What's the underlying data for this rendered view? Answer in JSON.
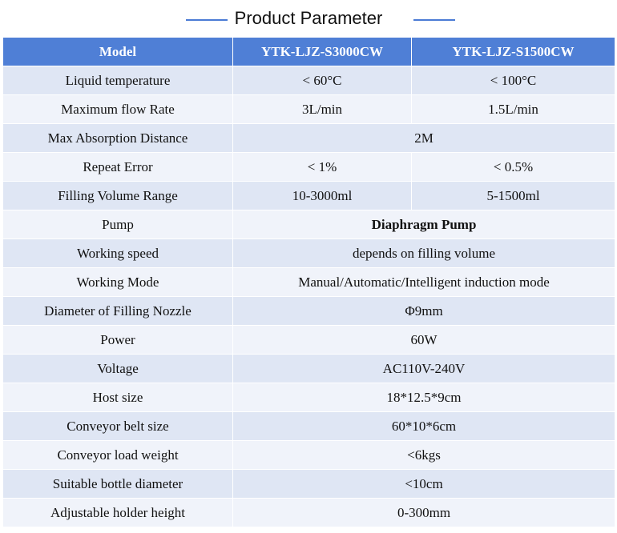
{
  "title": "Product Parameter",
  "header": {
    "model": "Model",
    "col1": "YTK-LJZ-S3000CW",
    "col2": "YTK-LJZ-S1500CW"
  },
  "rows": [
    {
      "label": "Liquid temperature",
      "v1": "< 60°C",
      "v2": "< 100°C"
    },
    {
      "label": "Maximum  flow Rate",
      "v1": "3L/min",
      "v2": "1.5L/min"
    },
    {
      "label": "Max Absorption Distance",
      "merged": "2M"
    },
    {
      "label": "Repeat Error",
      "v1": "< 1%",
      "v2": "< 0.5%"
    },
    {
      "label": "Filling  Volume Range",
      "v1": "10-3000ml",
      "v2": "5-1500ml"
    },
    {
      "label": "Pump",
      "merged": "Diaphragm Pump"
    },
    {
      "label": "Working speed",
      "merged": "depends on filling  volume"
    },
    {
      "label": "Working Mode",
      "merged": "Manual/Automatic/Intelligent  induction mode"
    },
    {
      "label": "Diameter  of Filling  Nozzle",
      "merged": "Φ9mm"
    },
    {
      "label": "Power",
      "merged": "60W"
    },
    {
      "label": "Voltage",
      "merged": "AC110V-240V"
    },
    {
      "label": "Host size",
      "merged": "18*12.5*9cm"
    },
    {
      "label": "Conveyor belt size",
      "merged": "60*10*6cm"
    },
    {
      "label": "Conveyor load weight",
      "merged": "<6kgs"
    },
    {
      "label": "Suitable  bottle diameter",
      "merged": "<10cm"
    },
    {
      "label": "Adjustable holder height",
      "merged": "0-300mm"
    }
  ],
  "colors": {
    "header_bg": "#4f7fd6",
    "row_odd": "#dfe6f4",
    "row_even": "#f0f3fa",
    "title_line": "#4a7bd5"
  }
}
